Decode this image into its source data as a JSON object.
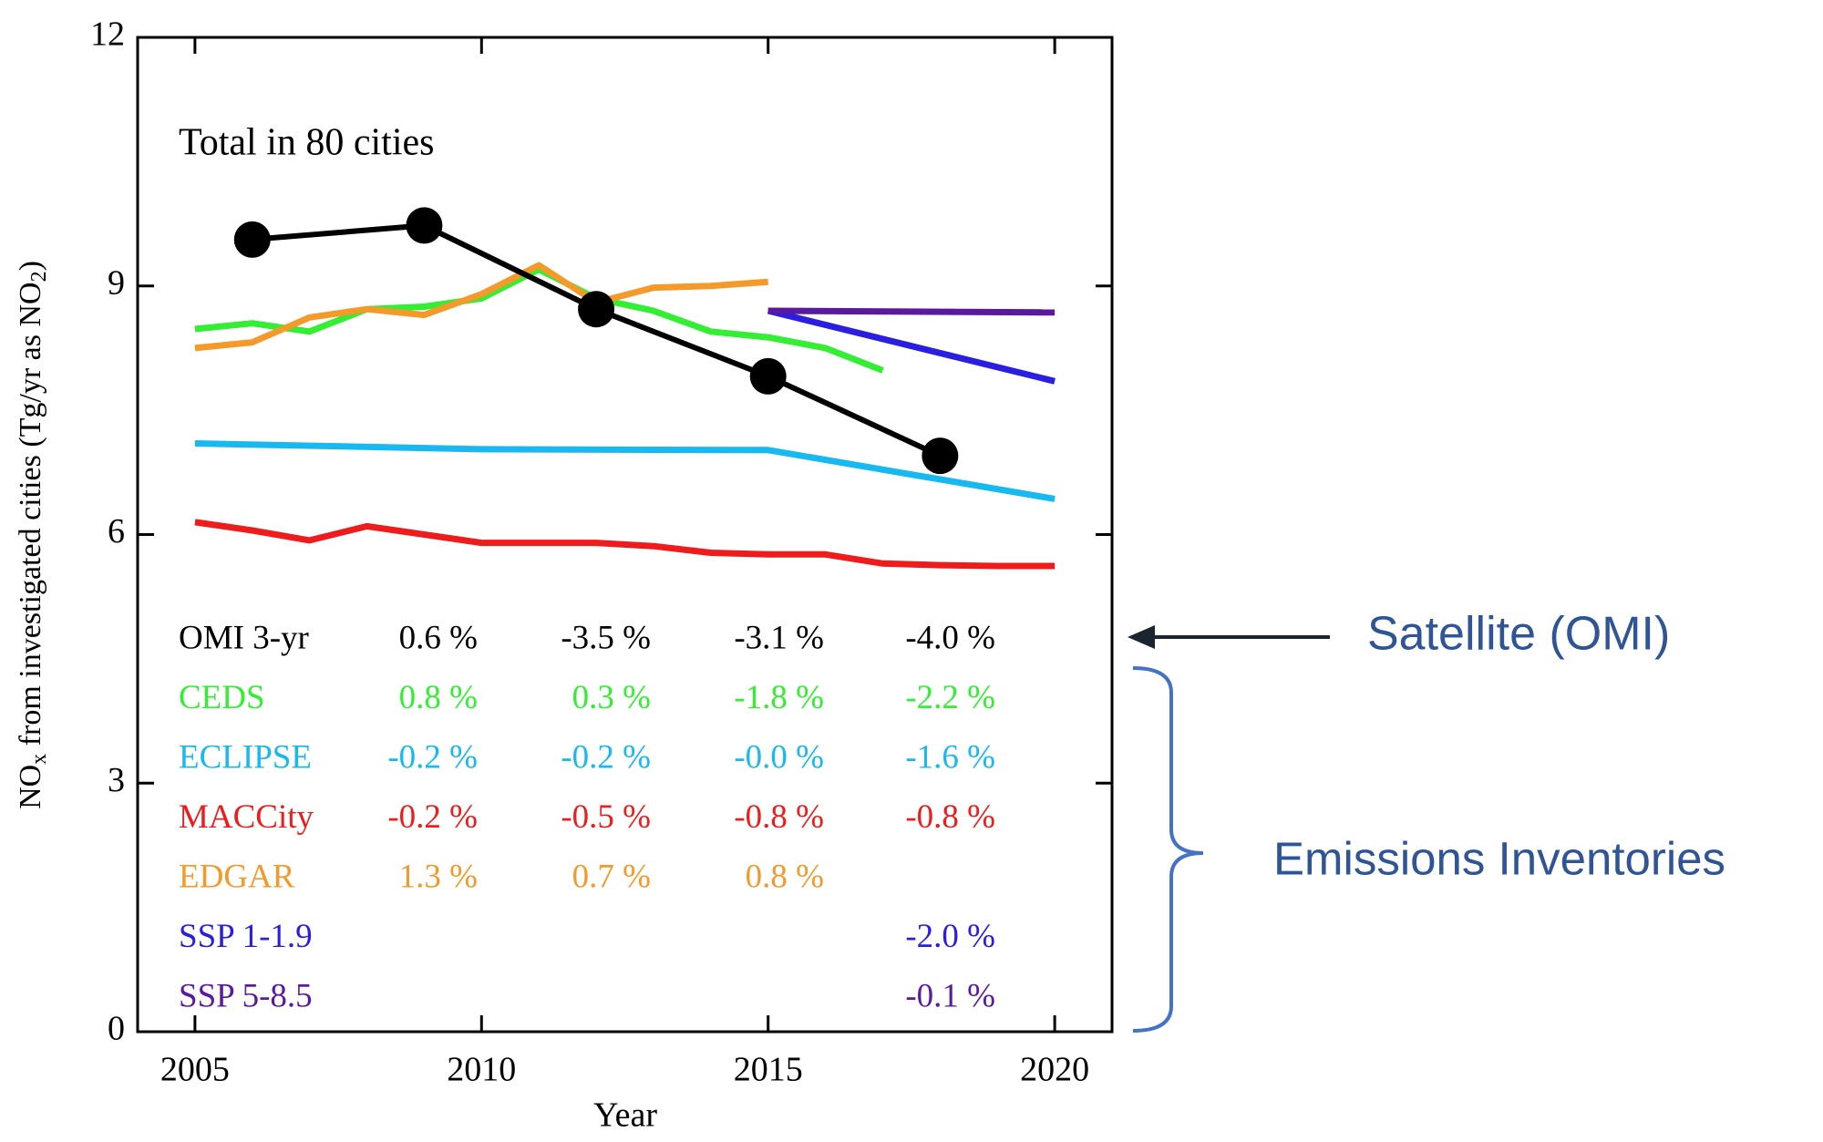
{
  "chart_data": {
    "type": "line",
    "annotation": "Total in 80 cities",
    "x_label": "Year",
    "y_label": [
      "NO",
      "x",
      " from investigated cities (Tg/yr as NO",
      "2",
      ")"
    ],
    "xlim": [
      2004,
      2021
    ],
    "ylim": [
      0,
      12
    ],
    "xticks": [
      2005,
      2010,
      2015,
      2020
    ],
    "yticks": [
      0,
      3,
      6,
      9,
      12
    ],
    "series": [
      {
        "name": "OMI 3-yr",
        "color": "#000000",
        "markers": true,
        "x": [
          2006,
          2009,
          2012,
          2015,
          2018
        ],
        "values": [
          9.56,
          9.73,
          8.72,
          7.91,
          6.95
        ],
        "trends": [
          "0.6 %",
          "-3.5 %",
          "-3.1 %",
          "-4.0 %"
        ]
      },
      {
        "name": "CEDS",
        "color": "#33ee33",
        "markers": false,
        "x": [
          2005,
          2006,
          2007,
          2008,
          2009,
          2010,
          2011,
          2012,
          2013,
          2014,
          2015,
          2016,
          2017
        ],
        "values": [
          8.48,
          8.55,
          8.45,
          8.72,
          8.75,
          8.85,
          9.2,
          8.85,
          8.7,
          8.45,
          8.38,
          8.25,
          7.98
        ],
        "trends": [
          "0.8 %",
          "0.3 %",
          "-1.8 %",
          "-2.2 %"
        ]
      },
      {
        "name": "ECLIPSE",
        "color": "#18b8f0",
        "markers": false,
        "x": [
          2005,
          2010,
          2015,
          2020
        ],
        "values": [
          7.1,
          7.03,
          7.02,
          6.43
        ],
        "trends": [
          "-0.2 %",
          "-0.2 %",
          "-0.0 %",
          "-1.6 %"
        ]
      },
      {
        "name": "MACCity",
        "color": "#ee1c1c",
        "markers": false,
        "x": [
          2005,
          2006,
          2007,
          2008,
          2009,
          2010,
          2011,
          2012,
          2013,
          2014,
          2015,
          2016,
          2017,
          2018,
          2019,
          2020
        ],
        "values": [
          6.15,
          6.05,
          5.93,
          6.1,
          6.0,
          5.9,
          5.9,
          5.9,
          5.86,
          5.78,
          5.76,
          5.76,
          5.65,
          5.63,
          5.62,
          5.62
        ],
        "trends": [
          "-0.2 %",
          "-0.5 %",
          "-0.8 %",
          "-0.8 %"
        ]
      },
      {
        "name": "EDGAR",
        "color": "#f39a2a",
        "markers": false,
        "x": [
          2005,
          2006,
          2007,
          2008,
          2009,
          2010,
          2011,
          2012,
          2013,
          2014,
          2015
        ],
        "values": [
          8.25,
          8.32,
          8.62,
          8.72,
          8.65,
          8.9,
          9.25,
          8.8,
          8.98,
          9.0,
          9.05
        ],
        "trends": [
          "1.3 %",
          "0.7 %",
          "0.8 %",
          null
        ]
      },
      {
        "name": "SSP 1-1.9",
        "color": "#2a1ee0",
        "markers": false,
        "x": [
          2015,
          2020
        ],
        "values": [
          8.7,
          7.85
        ],
        "trends": [
          null,
          null,
          null,
          "-2.0 %"
        ]
      },
      {
        "name": "SSP 5-8.5",
        "color": "#5a1aa0",
        "markers": false,
        "x": [
          2015,
          2020
        ],
        "values": [
          8.7,
          8.68
        ],
        "trends": [
          null,
          null,
          null,
          "-0.1 %"
        ]
      }
    ]
  },
  "callouts": {
    "satellite": "Satellite (OMI)",
    "inventories": "Emissions Inventories"
  }
}
